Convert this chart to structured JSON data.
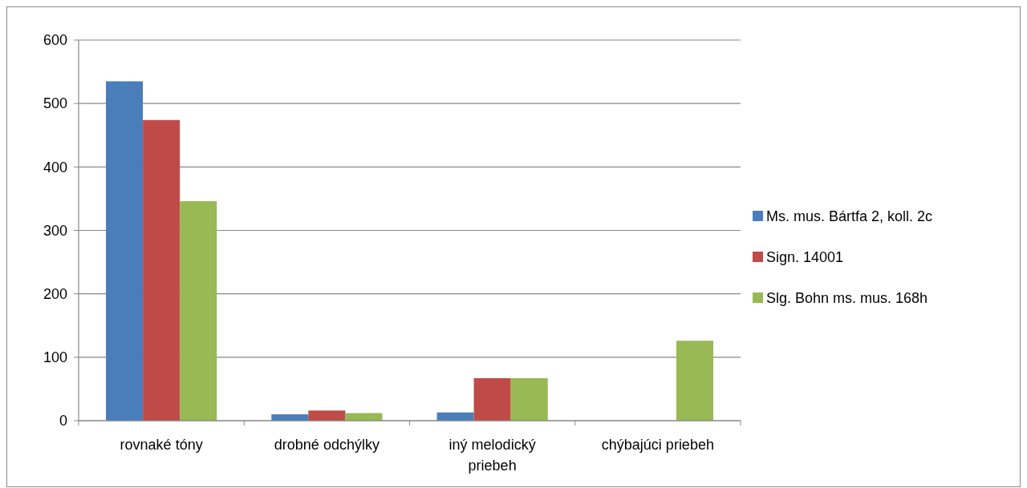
{
  "chart_data": {
    "type": "bar",
    "categories": [
      "rovnaké tóny",
      "drobné odchýlky",
      "iný melodický priebeh",
      "chýbajúci priebeh"
    ],
    "series": [
      {
        "name": "Ms. mus. Bártfa 2, koll. 2c",
        "color": "#4a7ebb",
        "values": [
          535,
          10,
          13,
          0
        ]
      },
      {
        "name": "Sign. 14001",
        "color": "#be4b48",
        "values": [
          474,
          16,
          67,
          0
        ]
      },
      {
        "name": "Slg. Bohn ms. mus. 168h",
        "color": "#98b954",
        "values": [
          346,
          12,
          67,
          126
        ]
      }
    ],
    "ylim": [
      0,
      600
    ],
    "yticks": [
      0,
      100,
      200,
      300,
      400,
      500,
      600
    ],
    "grid": "y",
    "legend": "right"
  }
}
